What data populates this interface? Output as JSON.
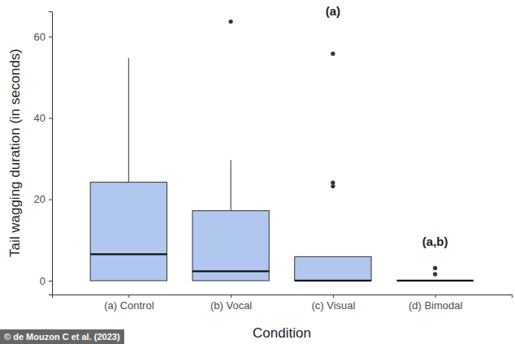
{
  "chart_data": {
    "type": "box",
    "x_label": "Condition",
    "y_label": "Tail wagging duration (in seconds)",
    "categories": [
      "(a) Control",
      "(b) Vocal",
      "(c) Visual",
      "(d) Bimodal"
    ],
    "boxes": [
      {
        "min": 0,
        "q1": 0,
        "median": 6.5,
        "q3": 24.2,
        "max": 54.7,
        "outliers": []
      },
      {
        "min": 0,
        "q1": 0,
        "median": 2.3,
        "q3": 17.2,
        "max": 29.7,
        "outliers": [
          63.7
        ]
      },
      {
        "min": 0,
        "q1": 0,
        "median": 0,
        "q3": 5.9,
        "max": 5.9,
        "outliers": [
          23.2,
          24.1,
          55.8
        ]
      },
      {
        "min": 0,
        "q1": 0,
        "median": 0,
        "q3": 0,
        "max": 0,
        "outliers": [
          1.6,
          3.1
        ]
      }
    ],
    "color": "#b0c8f0",
    "ylim": [
      -3.4,
      66.2
    ],
    "yticks": [
      0,
      20,
      40,
      60
    ],
    "grid": false,
    "annotations": [
      {
        "text": "(a)",
        "category": 2,
        "y": 66
      },
      {
        "text": "(a,b)",
        "category": 3,
        "y": 9.4
      }
    ],
    "source": "© de Mouzon C et al. (2023)"
  }
}
